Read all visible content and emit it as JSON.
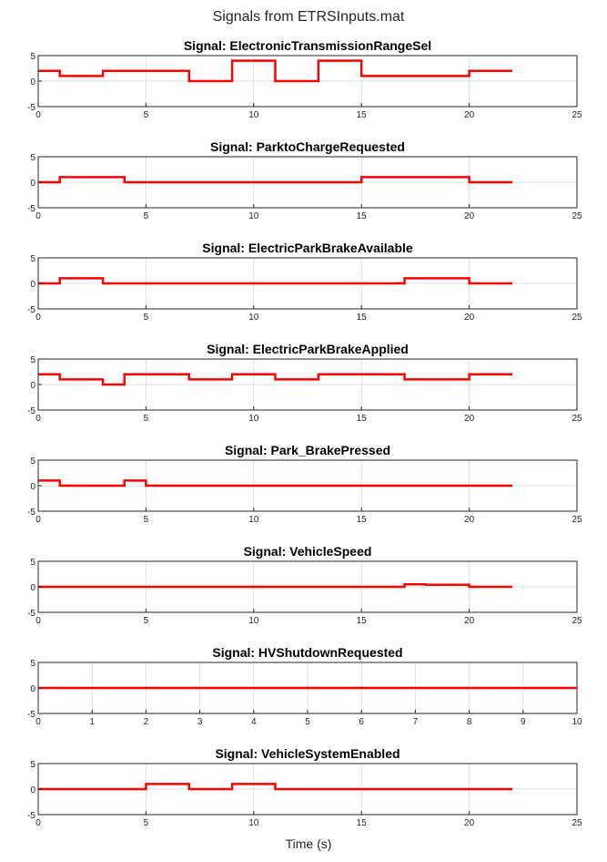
{
  "figure": {
    "title": "Signals from ETRSInputs.mat",
    "xlabel": "Time (s)",
    "line_color": "#ff0000",
    "grid_color": "#dfdfdf",
    "axes_color": "#262626"
  },
  "chart_data": [
    {
      "type": "line",
      "title": "Signal: ElectronicTransmissionRangeSel",
      "xlim": [
        0,
        25
      ],
      "ylim": [
        -5,
        5
      ],
      "xticks": [
        0,
        5,
        10,
        15,
        20,
        25
      ],
      "yticks": [
        -5,
        0,
        5
      ],
      "grid": true,
      "step": true,
      "x": [
        0,
        1,
        3,
        7,
        9,
        11,
        13,
        15,
        20,
        22
      ],
      "y": [
        2,
        1,
        2,
        0,
        4,
        0,
        4,
        1,
        2,
        2
      ]
    },
    {
      "type": "line",
      "title": "Signal: ParktoChargeRequested",
      "xlim": [
        0,
        25
      ],
      "ylim": [
        -5,
        5
      ],
      "xticks": [
        0,
        5,
        10,
        15,
        20,
        25
      ],
      "yticks": [
        -5,
        0,
        5
      ],
      "grid": true,
      "step": true,
      "x": [
        0,
        1,
        4,
        15,
        20,
        22
      ],
      "y": [
        0,
        1,
        0,
        1,
        0,
        0
      ]
    },
    {
      "type": "line",
      "title": "Signal: ElectricParkBrakeAvailable",
      "xlim": [
        0,
        25
      ],
      "ylim": [
        -5,
        5
      ],
      "xticks": [
        0,
        5,
        10,
        15,
        20,
        25
      ],
      "yticks": [
        -5,
        0,
        5
      ],
      "grid": true,
      "step": true,
      "x": [
        0,
        1,
        3,
        17,
        20,
        22
      ],
      "y": [
        0,
        1,
        0,
        1,
        0,
        0
      ]
    },
    {
      "type": "line",
      "title": "Signal: ElectricParkBrakeApplied",
      "xlim": [
        0,
        25
      ],
      "ylim": [
        -5,
        5
      ],
      "xticks": [
        0,
        5,
        10,
        15,
        20,
        25
      ],
      "yticks": [
        -5,
        0,
        5
      ],
      "grid": true,
      "step": true,
      "x": [
        0,
        1,
        3,
        4,
        7,
        9,
        11,
        13,
        17,
        20,
        22
      ],
      "y": [
        2,
        1,
        0,
        2,
        1,
        2,
        1,
        2,
        1,
        2,
        2
      ]
    },
    {
      "type": "line",
      "title": "Signal: Park_BrakePressed",
      "xlim": [
        0,
        25
      ],
      "ylim": [
        -5,
        5
      ],
      "xticks": [
        0,
        5,
        10,
        15,
        20,
        25
      ],
      "yticks": [
        -5,
        0,
        5
      ],
      "grid": true,
      "step": true,
      "x": [
        0,
        1,
        4,
        5,
        22
      ],
      "y": [
        1,
        0,
        1,
        0,
        0
      ]
    },
    {
      "type": "line",
      "title": "Signal: VehicleSpeed",
      "xlim": [
        0,
        25
      ],
      "ylim": [
        -5,
        5
      ],
      "xticks": [
        0,
        5,
        10,
        15,
        20,
        25
      ],
      "yticks": [
        -5,
        0,
        5
      ],
      "grid": true,
      "step": true,
      "x": [
        0,
        17,
        18,
        20,
        22
      ],
      "y": [
        0,
        0.5,
        0.4,
        0,
        0
      ]
    },
    {
      "type": "line",
      "title": "Signal: HVShutdownRequested",
      "xlim": [
        0,
        10
      ],
      "ylim": [
        -5,
        5
      ],
      "xticks": [
        0,
        1,
        2,
        3,
        4,
        5,
        6,
        7,
        8,
        9,
        10
      ],
      "yticks": [
        -5,
        0,
        5
      ],
      "grid": true,
      "step": true,
      "x": [
        0,
        10
      ],
      "y": [
        0,
        0
      ]
    },
    {
      "type": "line",
      "title": "Signal: VehicleSystemEnabled",
      "xlim": [
        0,
        25
      ],
      "ylim": [
        -5,
        5
      ],
      "xticks": [
        0,
        5,
        10,
        15,
        20,
        25
      ],
      "yticks": [
        -5,
        0,
        5
      ],
      "grid": true,
      "step": true,
      "x": [
        0,
        5,
        7,
        9,
        11,
        22
      ],
      "y": [
        0,
        1,
        0,
        1,
        0,
        0
      ]
    }
  ]
}
